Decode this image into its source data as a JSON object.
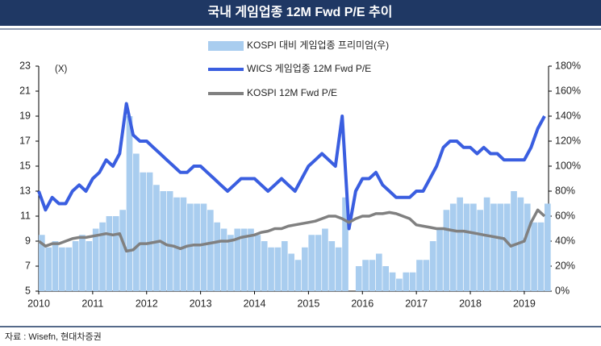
{
  "title": "국내 게임업종 12M Fwd P/E 추이",
  "source": "자료 : Wisefn, 현대차증권",
  "chart_data": {
    "type": "line",
    "y_unit_label": "(X)",
    "x": [
      2010,
      2010.125,
      2010.25,
      2010.375,
      2010.5,
      2010.625,
      2010.75,
      2010.875,
      2011,
      2011.125,
      2011.25,
      2011.375,
      2011.5,
      2011.625,
      2011.75,
      2011.875,
      2012,
      2012.125,
      2012.25,
      2012.375,
      2012.5,
      2012.625,
      2012.75,
      2012.875,
      2013,
      2013.125,
      2013.25,
      2013.375,
      2013.5,
      2013.625,
      2013.75,
      2013.875,
      2014,
      2014.125,
      2014.25,
      2014.375,
      2014.5,
      2014.625,
      2014.75,
      2014.875,
      2015,
      2015.125,
      2015.25,
      2015.375,
      2015.5,
      2015.625,
      2015.75,
      2015.875,
      2016,
      2016.125,
      2016.25,
      2016.375,
      2016.5,
      2016.625,
      2016.75,
      2016.875,
      2017,
      2017.125,
      2017.25,
      2017.375,
      2017.5,
      2017.625,
      2017.75,
      2017.875,
      2018,
      2018.125,
      2018.25,
      2018.375,
      2018.5,
      2018.625,
      2018.75,
      2018.875,
      2019,
      2019.125,
      2019.25,
      2019.375
    ],
    "series": [
      {
        "name": "KOSPI 대비 게임업종 프리미엄(우)",
        "type": "bar",
        "axis": "y2",
        "color": "#a9cdef",
        "values": [
          45,
          35,
          40,
          35,
          35,
          40,
          45,
          40,
          50,
          55,
          60,
          60,
          65,
          140,
          110,
          95,
          95,
          85,
          80,
          80,
          75,
          75,
          70,
          70,
          70,
          65,
          55,
          50,
          45,
          50,
          50,
          50,
          45,
          40,
          35,
          35,
          40,
          30,
          25,
          35,
          45,
          45,
          50,
          40,
          35,
          75,
          0,
          20,
          25,
          25,
          30,
          20,
          15,
          10,
          15,
          15,
          25,
          25,
          40,
          50,
          65,
          70,
          75,
          70,
          70,
          65,
          75,
          70,
          70,
          70,
          80,
          75,
          70,
          55,
          55,
          70
        ]
      },
      {
        "name": "WICS 게임업종 12M Fwd P/E",
        "type": "line",
        "color": "#3a5ee0",
        "values": [
          13,
          11.5,
          12.5,
          12,
          12,
          13,
          13.5,
          13,
          14,
          14.5,
          15.5,
          15,
          16,
          20,
          17.5,
          17,
          17,
          16.5,
          16,
          15.5,
          15,
          14.5,
          14.5,
          15,
          15,
          14.5,
          14,
          13.5,
          13,
          13.5,
          14,
          14,
          14,
          13.5,
          13,
          13.5,
          14,
          13.5,
          13,
          14,
          15,
          15.5,
          16,
          15.5,
          15,
          19,
          10,
          13,
          14,
          14,
          14.5,
          13.5,
          13,
          12.5,
          12.5,
          12.5,
          13,
          13,
          14,
          15,
          16.5,
          17,
          17,
          16.5,
          16.5,
          16,
          16.5,
          16,
          16,
          15.5,
          15.5,
          15.5,
          15.5,
          16.5,
          18,
          19
        ]
      },
      {
        "name": "KOSPI 12M Fwd P/E",
        "type": "line",
        "color": "#808080",
        "values": [
          9,
          8.6,
          8.8,
          8.8,
          9,
          9.2,
          9.3,
          9.3,
          9.4,
          9.5,
          9.6,
          9.5,
          9.6,
          8.2,
          8.3,
          8.8,
          8.8,
          8.9,
          9,
          8.7,
          8.6,
          8.4,
          8.6,
          8.7,
          8.7,
          8.8,
          8.9,
          9,
          9,
          9.1,
          9.3,
          9.4,
          9.5,
          9.7,
          9.8,
          10,
          10,
          10.2,
          10.3,
          10.4,
          10.5,
          10.6,
          10.8,
          11,
          11,
          10.8,
          10.5,
          10.8,
          11,
          11,
          11.2,
          11.2,
          11.3,
          11.2,
          11,
          10.8,
          10.3,
          10.2,
          10.1,
          10,
          10,
          9.9,
          9.8,
          9.8,
          9.7,
          9.6,
          9.5,
          9.4,
          9.3,
          9.2,
          8.6,
          8.8,
          9,
          10.5,
          11.5,
          11
        ]
      }
    ],
    "xlim": [
      2010,
      2019.45
    ],
    "xticks": [
      2010,
      2011,
      2012,
      2013,
      2014,
      2015,
      2016,
      2017,
      2018,
      2019
    ],
    "ylim": [
      5,
      23
    ],
    "yticks": [
      5,
      7,
      9,
      11,
      13,
      15,
      17,
      19,
      21,
      23
    ],
    "y2lim": [
      0,
      180
    ],
    "y2ticks": [
      {
        "value": 0,
        "label": "0%"
      },
      {
        "value": 20,
        "label": "20%"
      },
      {
        "value": 40,
        "label": "40%"
      },
      {
        "value": 60,
        "label": "60%"
      },
      {
        "value": 80,
        "label": "80%"
      },
      {
        "value": 100,
        "label": "100%"
      },
      {
        "value": 120,
        "label": "120%"
      },
      {
        "value": 140,
        "label": "140%"
      },
      {
        "value": 160,
        "label": "160%"
      },
      {
        "value": 180,
        "label": "180%"
      }
    ]
  }
}
